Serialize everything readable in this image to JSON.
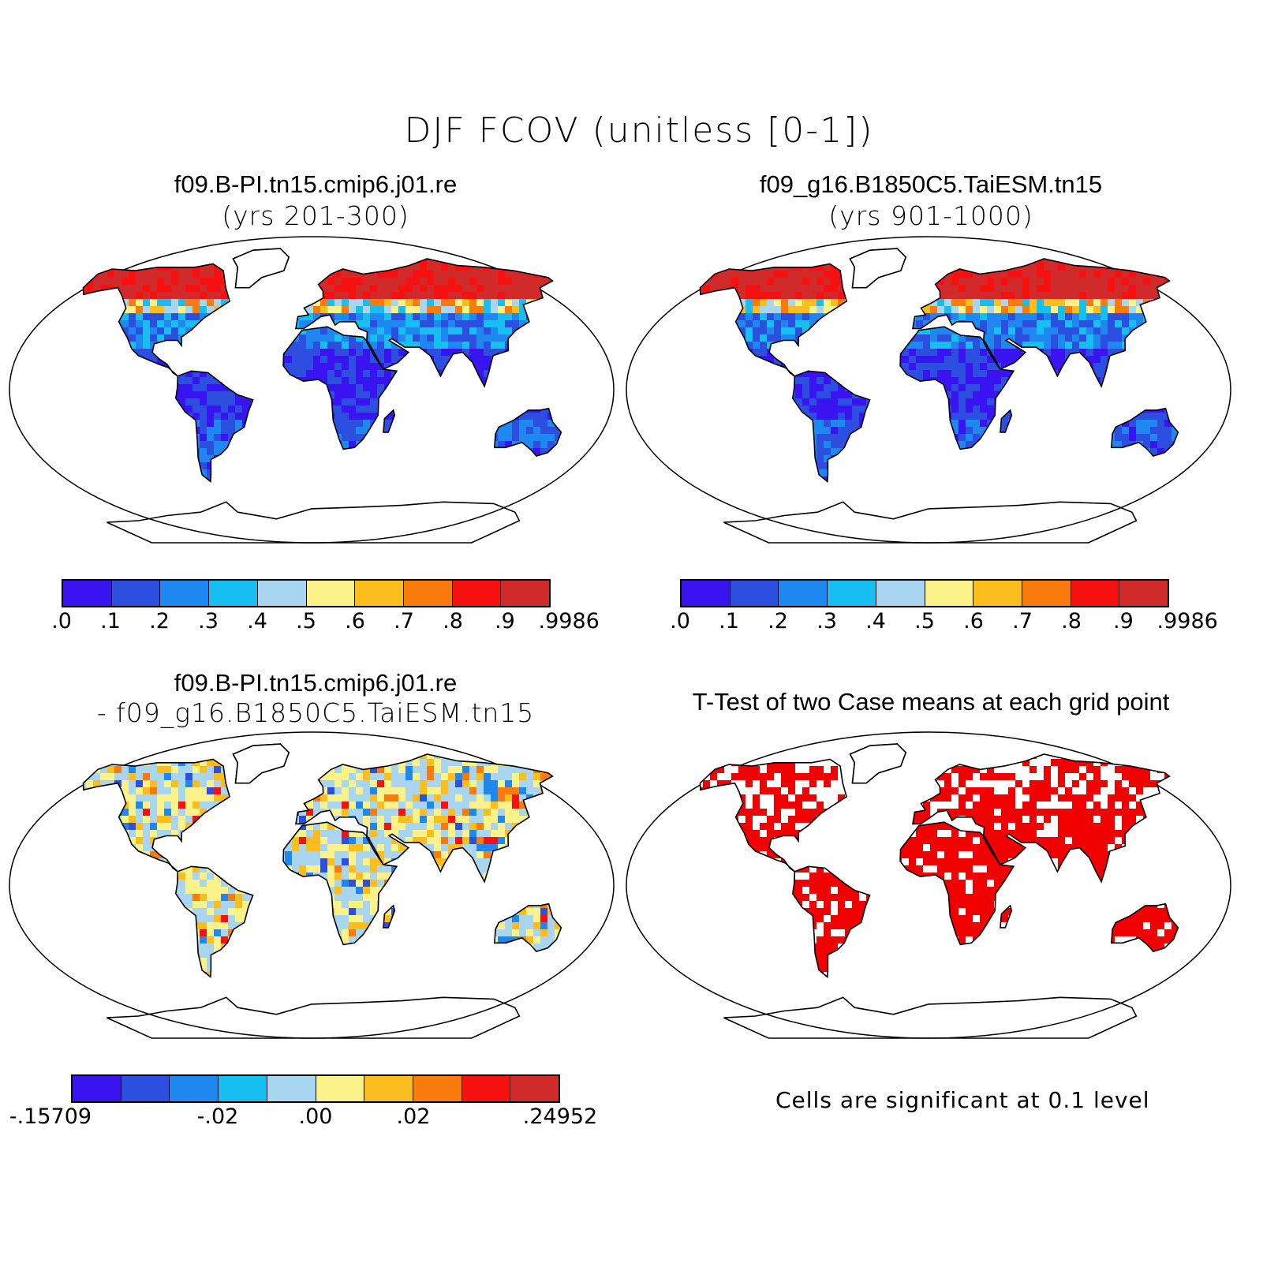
{
  "main_title": "DJF FCOV (unitless [0-1])",
  "panels": [
    {
      "id": "tl",
      "title": "f09.B-PI.tn15.cmip6.j01.re",
      "subtitle": "(yrs 201-300)"
    },
    {
      "id": "tr",
      "title": "f09_g16.B1850C5.TaiESM.tn15",
      "subtitle": "(yrs 901-1000)"
    },
    {
      "id": "bl",
      "title": "f09.B-PI.tn15.cmip6.j01.re",
      "subtitle": "- f09_g16.B1850C5.TaiESM.tn15"
    },
    {
      "id": "br",
      "title": "T-Test of two Case means at each grid point",
      "subtitle": ""
    }
  ],
  "colorbar_top": {
    "colors": [
      "#3a14f0",
      "#2d4fe0",
      "#1e87f0",
      "#16bff0",
      "#a8d6f0",
      "#fbf28a",
      "#fbbe1e",
      "#f87b0c",
      "#f71010",
      "#d12a2a"
    ],
    "ticks": [
      ".0",
      ".1",
      ".2",
      ".3",
      ".4",
      ".5",
      ".6",
      ".7",
      ".8",
      ".9",
      ".9986"
    ]
  },
  "colorbar_diff": {
    "colors": [
      "#3a14f0",
      "#2d4fe0",
      "#1e87f0",
      "#16bff0",
      "#a8d6f0",
      "#fbf28a",
      "#fbbe1e",
      "#f87b0c",
      "#f71010",
      "#d12a2a"
    ],
    "ticks": [
      "-.15709",
      "-.02",
      ".00",
      ".02",
      ".24952"
    ]
  },
  "note": "Cells are significant at 0.1 level",
  "colors": {
    "significant": "#f00000",
    "land_outline": "#000000"
  }
}
